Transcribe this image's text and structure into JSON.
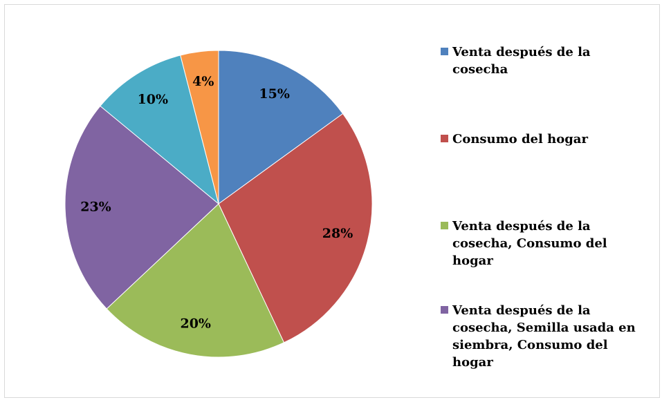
{
  "chart_data": {
    "type": "pie",
    "categories": [
      "Venta después de la cosecha",
      "Consumo del hogar",
      "Venta después de la cosecha, Consumo del hogar",
      "Venta después de la cosecha, Semilla usada en siembra, Consumo del hogar",
      null,
      null
    ],
    "values": [
      15,
      28,
      20,
      23,
      10,
      4
    ],
    "value_labels": [
      "15%",
      "28%",
      "20%",
      "23%",
      "10%",
      "4%"
    ],
    "colors": [
      "#4f81bd",
      "#c0504d",
      "#9bbb59",
      "#8064a2",
      "#4bacc6",
      "#f79646"
    ],
    "legend": "right"
  }
}
